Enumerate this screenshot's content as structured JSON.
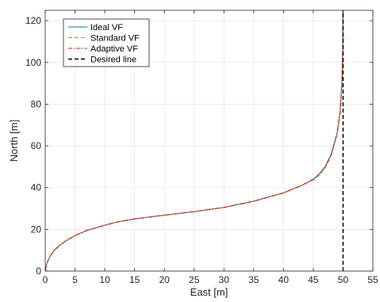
{
  "chart_data": {
    "type": "line",
    "xlabel": "East [m]",
    "ylabel": "North [m]",
    "xlim": [
      0,
      55
    ],
    "ylim": [
      0,
      125
    ],
    "xticks": [
      0,
      5,
      10,
      15,
      20,
      25,
      30,
      35,
      40,
      45,
      50,
      55
    ],
    "yticks": [
      0,
      20,
      40,
      60,
      80,
      100,
      120
    ],
    "grid": true,
    "legend_position": "top-left",
    "series": [
      {
        "name": "Ideal VF",
        "color": "#0072BD",
        "dash": "solid",
        "points": [
          [
            0,
            0
          ],
          [
            0.3,
            4
          ],
          [
            0.8,
            7
          ],
          [
            1.5,
            10
          ],
          [
            2.5,
            12.5
          ],
          [
            3.5,
            14.5
          ],
          [
            5,
            17
          ],
          [
            7,
            19.5
          ],
          [
            10,
            22
          ],
          [
            12,
            23.5
          ],
          [
            15,
            25
          ],
          [
            20,
            26.8
          ],
          [
            25,
            28.5
          ],
          [
            30,
            30.5
          ],
          [
            35,
            33.5
          ],
          [
            40,
            37.5
          ],
          [
            43,
            41
          ],
          [
            45,
            44
          ],
          [
            46,
            46.5
          ],
          [
            47,
            50
          ],
          [
            48,
            56
          ],
          [
            49,
            66
          ],
          [
            49.5,
            76
          ],
          [
            49.8,
            90
          ],
          [
            49.95,
            105
          ],
          [
            50,
            125
          ]
        ]
      },
      {
        "name": "Standard VF",
        "color": "#77AC30",
        "dash": "dashed",
        "points": [
          [
            0,
            0
          ],
          [
            0.3,
            4
          ],
          [
            0.8,
            7
          ],
          [
            1.5,
            10
          ],
          [
            2.5,
            12.5
          ],
          [
            3.5,
            14.5
          ],
          [
            5,
            17
          ],
          [
            7,
            19.5
          ],
          [
            10,
            22
          ],
          [
            12,
            23.5
          ],
          [
            15,
            25
          ],
          [
            20,
            26.8
          ],
          [
            25,
            28.5
          ],
          [
            30,
            30.5
          ],
          [
            35,
            33.5
          ],
          [
            40,
            37.5
          ],
          [
            43,
            41
          ],
          [
            45.2,
            44
          ],
          [
            46.2,
            46.5
          ],
          [
            47.1,
            50
          ],
          [
            48.1,
            56
          ],
          [
            49,
            66
          ],
          [
            49.5,
            76
          ],
          [
            49.8,
            90
          ],
          [
            49.95,
            105
          ],
          [
            50,
            125
          ]
        ]
      },
      {
        "name": "Adaptive VF",
        "color": "#FF0000",
        "dash": "dashdot",
        "points": [
          [
            0,
            0
          ],
          [
            0.3,
            4
          ],
          [
            0.8,
            7
          ],
          [
            1.5,
            10
          ],
          [
            2.5,
            12.5
          ],
          [
            3.5,
            14.5
          ],
          [
            5,
            17
          ],
          [
            7,
            19.5
          ],
          [
            10,
            22
          ],
          [
            12,
            23.5
          ],
          [
            15,
            25
          ],
          [
            20,
            26.8
          ],
          [
            25,
            28.5
          ],
          [
            30,
            30.5
          ],
          [
            35,
            33.5
          ],
          [
            40,
            37.5
          ],
          [
            43,
            41
          ],
          [
            45,
            44
          ],
          [
            46,
            46.5
          ],
          [
            47,
            50
          ],
          [
            48,
            56
          ],
          [
            49,
            66
          ],
          [
            49.5,
            76
          ],
          [
            49.8,
            90
          ],
          [
            49.95,
            105
          ],
          [
            50,
            125
          ]
        ]
      },
      {
        "name": "Desired line",
        "color": "#000000",
        "dash": "dashed-bold",
        "points": [
          [
            50,
            0
          ],
          [
            50,
            125
          ]
        ]
      }
    ]
  }
}
